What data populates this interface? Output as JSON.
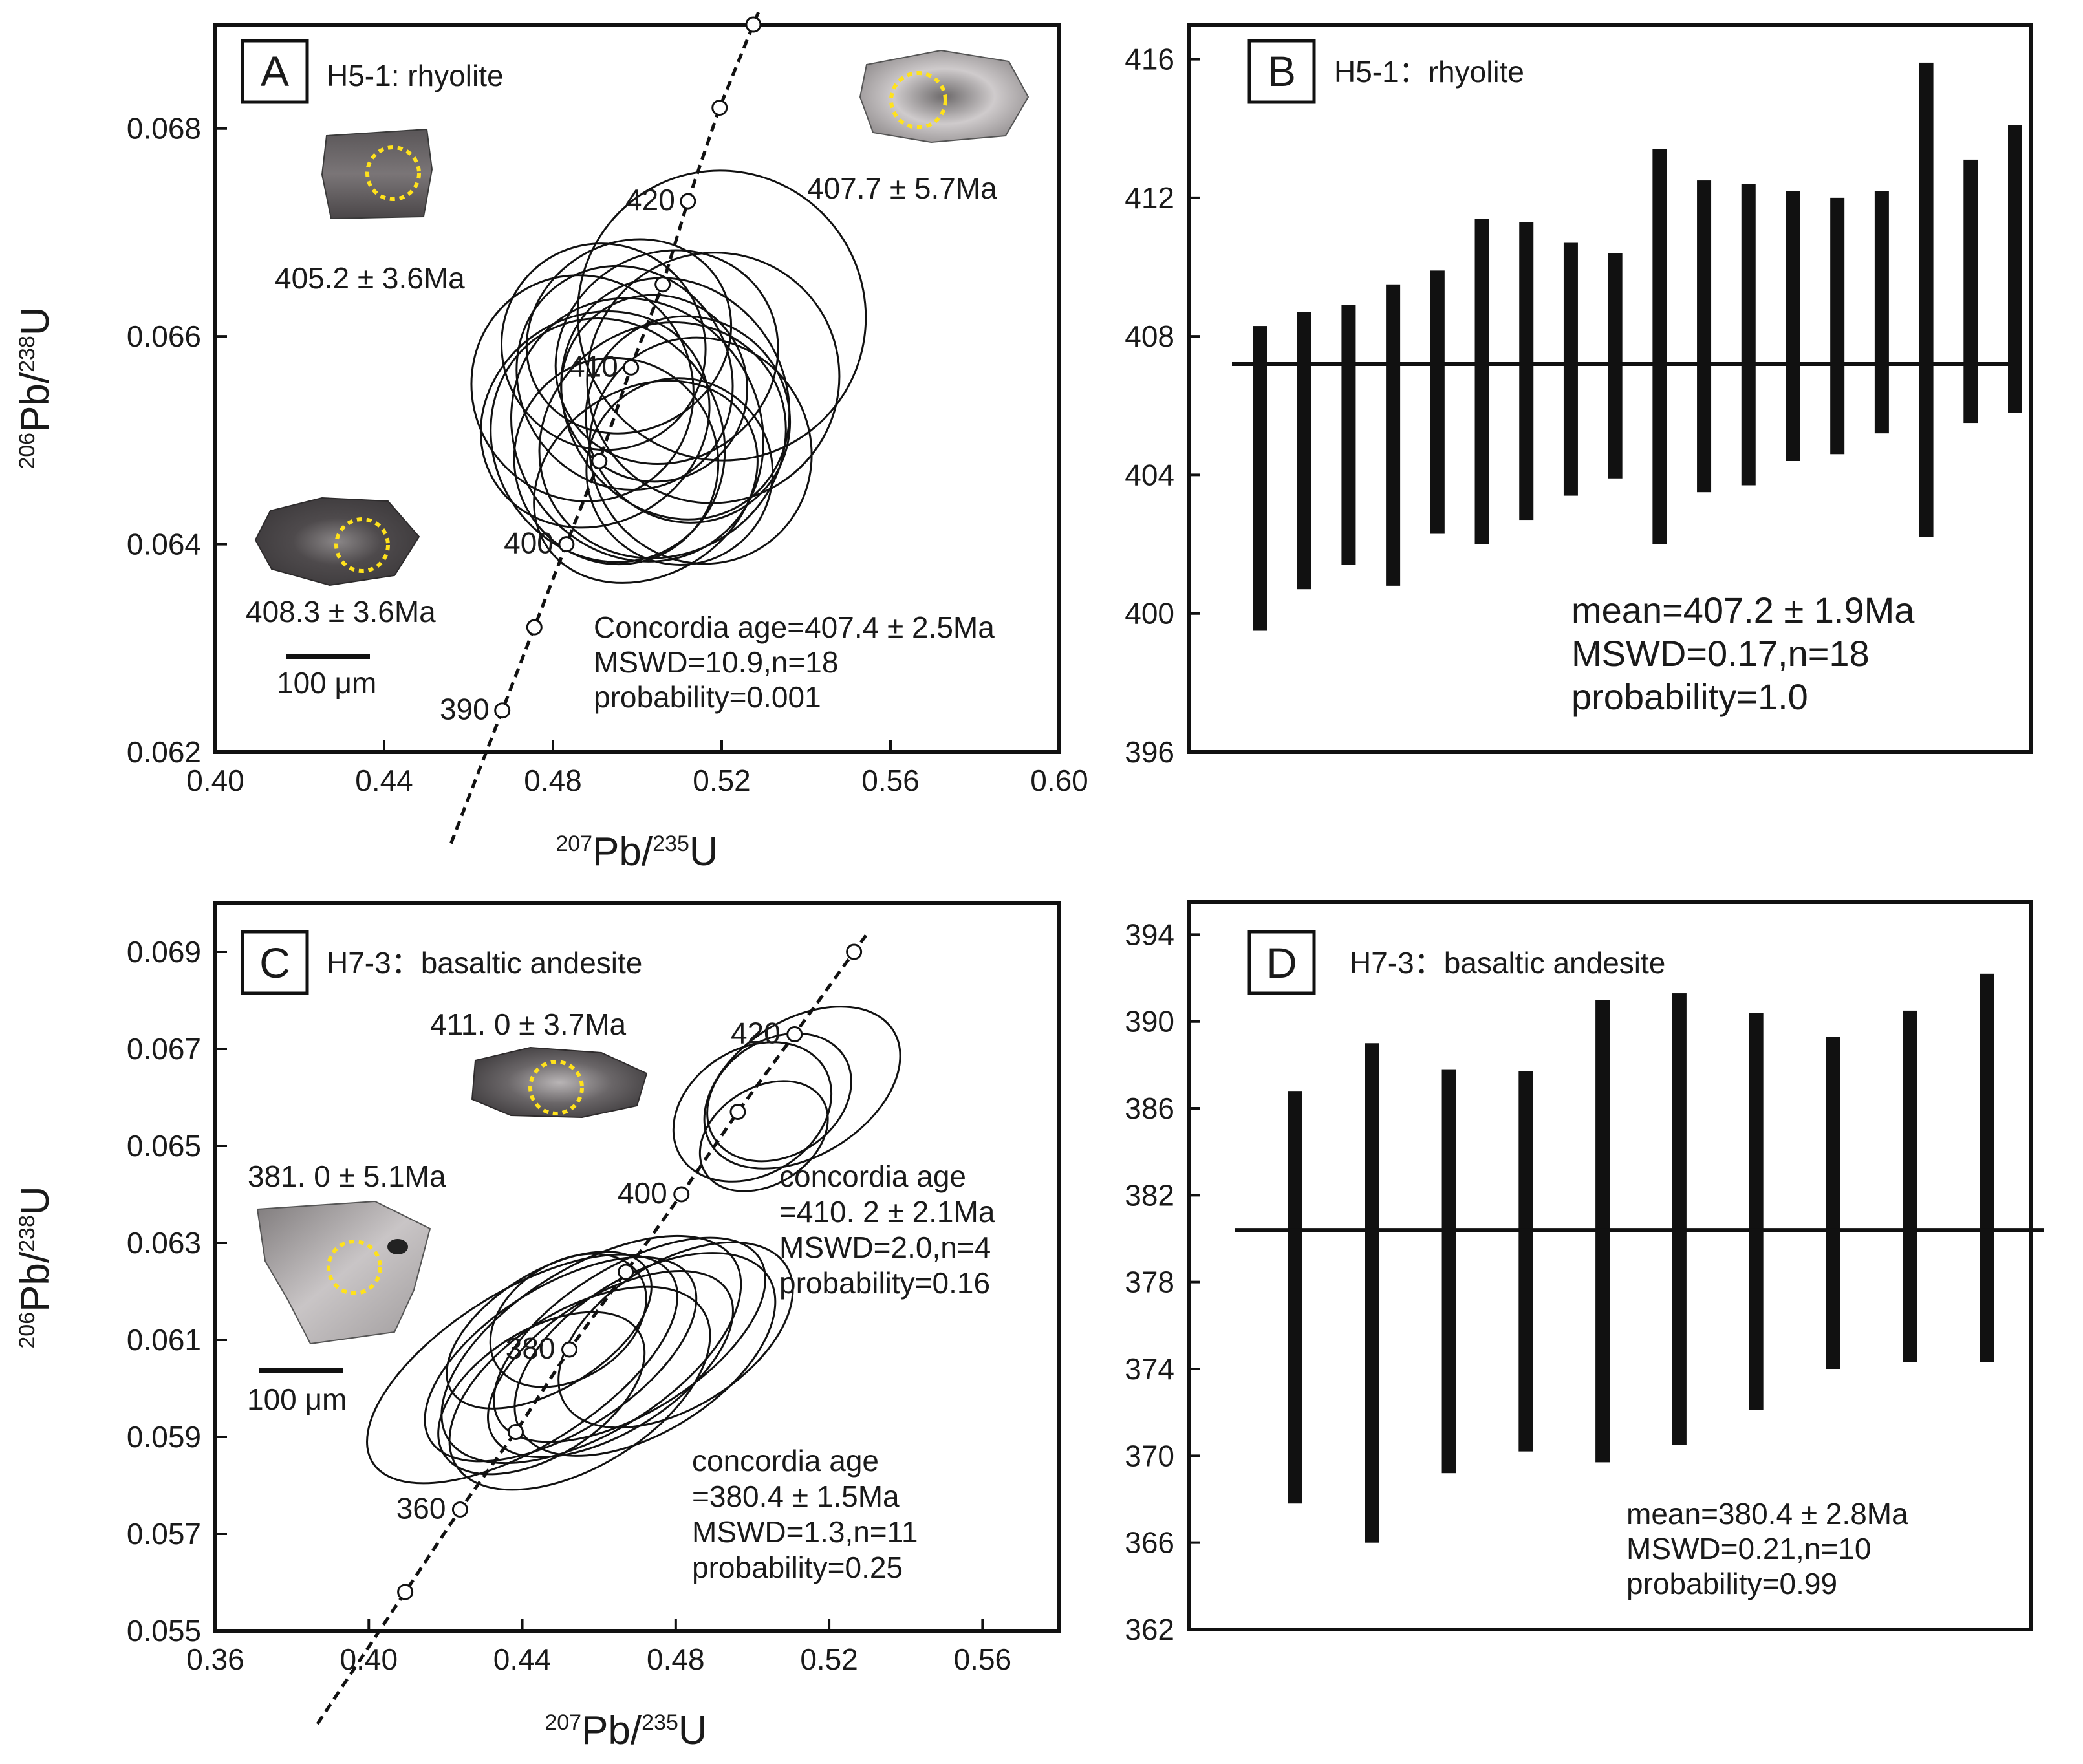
{
  "chart_data": [
    {
      "panel": "A",
      "type": "scatter",
      "subtype": "concordia-diagram",
      "title": "H5-1: rhyolite",
      "xlabel_parts": [
        "207",
        "Pb/",
        "235",
        "U"
      ],
      "ylabel_parts": [
        "206",
        "Pb/",
        "238",
        "U"
      ],
      "xlim": [
        0.4,
        0.6
      ],
      "ylim": [
        0.062,
        0.069
      ],
      "xticks": [
        "0.40",
        "0.44",
        "0.48",
        "0.52",
        "0.56",
        "0.60"
      ],
      "yticks": [
        "0.062",
        "0.064",
        "0.066",
        "0.068"
      ],
      "concordia_points": [
        {
          "x": 0.468,
          "y": 0.0624,
          "age": "390"
        },
        {
          "x": 0.4756,
          "y": 0.0632
        },
        {
          "x": 0.4832,
          "y": 0.064,
          "age": "400"
        },
        {
          "x": 0.491,
          "y": 0.0648
        },
        {
          "x": 0.4985,
          "y": 0.0657,
          "age": "410"
        },
        {
          "x": 0.506,
          "y": 0.0665
        },
        {
          "x": 0.512,
          "y": 0.0673,
          "age": "420"
        },
        {
          "x": 0.5195,
          "y": 0.0682
        },
        {
          "x": 0.5275,
          "y": 0.069
        }
      ],
      "ellipses": [
        {
          "x": 0.49,
          "y": 0.0652,
          "rx": 0.028,
          "ry": 0.001
        },
        {
          "x": 0.493,
          "y": 0.065,
          "rx": 0.027,
          "ry": 0.0012
        },
        {
          "x": 0.497,
          "y": 0.0656,
          "rx": 0.025,
          "ry": 0.0011
        },
        {
          "x": 0.5,
          "y": 0.0651,
          "rx": 0.029,
          "ry": 0.0013
        },
        {
          "x": 0.504,
          "y": 0.0655,
          "rx": 0.022,
          "ry": 0.0009
        },
        {
          "x": 0.506,
          "y": 0.065,
          "rx": 0.03,
          "ry": 0.0011
        },
        {
          "x": 0.509,
          "y": 0.0654,
          "rx": 0.026,
          "ry": 0.0012
        },
        {
          "x": 0.495,
          "y": 0.0648,
          "rx": 0.024,
          "ry": 0.001
        },
        {
          "x": 0.502,
          "y": 0.0646,
          "rx": 0.028,
          "ry": 0.0009
        },
        {
          "x": 0.512,
          "y": 0.0652,
          "rx": 0.024,
          "ry": 0.001
        },
        {
          "x": 0.515,
          "y": 0.0649,
          "rx": 0.026,
          "ry": 0.0011
        },
        {
          "x": 0.498,
          "y": 0.066,
          "rx": 0.025,
          "ry": 0.0009
        },
        {
          "x": 0.507,
          "y": 0.0658,
          "rx": 0.027,
          "ry": 0.001
        },
        {
          "x": 0.518,
          "y": 0.0656,
          "rx": 0.03,
          "ry": 0.0012
        },
        {
          "x": 0.52,
          "y": 0.0662,
          "rx": 0.034,
          "ry": 0.0014
        },
        {
          "x": 0.487,
          "y": 0.0655,
          "rx": 0.026,
          "ry": 0.0011
        },
        {
          "x": 0.492,
          "y": 0.0659,
          "rx": 0.024,
          "ry": 0.001
        },
        {
          "x": 0.51,
          "y": 0.0647,
          "rx": 0.022,
          "ry": 0.0009
        }
      ],
      "grain_ages": [
        "405.2 ± 3.6Ma",
        "407.7 ± 5.7Ma",
        "408.3 ± 3.6Ma"
      ],
      "scale_bar": "100 μm",
      "annotation": [
        "Concordia age=407.4  ± 2.5Ma",
        "MSWD=10.9,n=18",
        "probability=0.001"
      ]
    },
    {
      "panel": "B",
      "type": "bar",
      "subtype": "weighted-mean-age",
      "title": "H5-1：rhyolite",
      "ylim": [
        396,
        417
      ],
      "yticks": [
        "396",
        "400",
        "404",
        "408",
        "412",
        "416"
      ],
      "mean": 407.2,
      "bars": [
        [
          399.5,
          408.3
        ],
        [
          400.7,
          408.7
        ],
        [
          401.4,
          408.9
        ],
        [
          400.8,
          409.5
        ],
        [
          402.3,
          409.9
        ],
        [
          402.0,
          411.4
        ],
        [
          402.7,
          411.3
        ],
        [
          403.4,
          410.7
        ],
        [
          403.9,
          410.4
        ],
        [
          402.0,
          413.4
        ],
        [
          403.5,
          412.5
        ],
        [
          403.7,
          412.4
        ],
        [
          404.4,
          412.2
        ],
        [
          404.6,
          412.0
        ],
        [
          405.2,
          412.2
        ],
        [
          402.2,
          415.9
        ],
        [
          405.5,
          413.1
        ],
        [
          405.8,
          414.1
        ]
      ],
      "annotation": [
        "mean=407.2  ± 1.9Ma",
        "MSWD=0.17,n=18",
        "probability=1.0"
      ]
    },
    {
      "panel": "C",
      "type": "scatter",
      "subtype": "concordia-diagram",
      "title": "H7-3：basaltic andesite",
      "xlabel_parts": [
        "207",
        "Pb/",
        "235",
        "U"
      ],
      "ylabel_parts": [
        "206",
        "Pb/",
        "238",
        "U"
      ],
      "xlim": [
        0.36,
        0.58
      ],
      "ylim": [
        0.055,
        0.07
      ],
      "xticks": [
        "0.36",
        "0.40",
        "0.44",
        "0.48",
        "0.52",
        "0.56"
      ],
      "yticks": [
        "0.055",
        "0.057",
        "0.059",
        "0.061",
        "0.063",
        "0.065",
        "0.067",
        "0.069"
      ],
      "concordia_points": [
        {
          "x": 0.4095,
          "y": 0.0558
        },
        {
          "x": 0.4238,
          "y": 0.0575,
          "age": "360"
        },
        {
          "x": 0.4383,
          "y": 0.0591
        },
        {
          "x": 0.4523,
          "y": 0.0608,
          "age": "380"
        },
        {
          "x": 0.467,
          "y": 0.0624
        },
        {
          "x": 0.4815,
          "y": 0.064,
          "age": "400"
        },
        {
          "x": 0.4962,
          "y": 0.0657
        },
        {
          "x": 0.511,
          "y": 0.0673,
          "age": "420"
        },
        {
          "x": 0.5265,
          "y": 0.069
        }
      ],
      "ellipses": [
        {
          "x": 0.5,
          "y": 0.0657,
          "rx": 0.022,
          "ry": 0.0013
        },
        {
          "x": 0.507,
          "y": 0.066,
          "rx": 0.02,
          "ry": 0.0012
        },
        {
          "x": 0.513,
          "y": 0.0662,
          "rx": 0.028,
          "ry": 0.0014
        },
        {
          "x": 0.503,
          "y": 0.0652,
          "rx": 0.018,
          "ry": 0.001
        },
        {
          "x": 0.44,
          "y": 0.0604,
          "rx": 0.046,
          "ry": 0.0016
        },
        {
          "x": 0.45,
          "y": 0.0606,
          "rx": 0.04,
          "ry": 0.0015
        },
        {
          "x": 0.458,
          "y": 0.0608,
          "rx": 0.044,
          "ry": 0.0017
        },
        {
          "x": 0.463,
          "y": 0.0605,
          "rx": 0.036,
          "ry": 0.0014
        },
        {
          "x": 0.468,
          "y": 0.061,
          "rx": 0.04,
          "ry": 0.0015
        },
        {
          "x": 0.455,
          "y": 0.06,
          "rx": 0.038,
          "ry": 0.0016
        },
        {
          "x": 0.472,
          "y": 0.0607,
          "rx": 0.038,
          "ry": 0.0016
        },
        {
          "x": 0.447,
          "y": 0.0612,
          "rx": 0.03,
          "ry": 0.0012
        },
        {
          "x": 0.48,
          "y": 0.0611,
          "rx": 0.034,
          "ry": 0.0015
        },
        {
          "x": 0.452,
          "y": 0.0614,
          "rx": 0.022,
          "ry": 0.0012
        },
        {
          "x": 0.445,
          "y": 0.0599,
          "rx": 0.03,
          "ry": 0.0013
        }
      ],
      "grain_ages": [
        "411. 0 ± 3.7Ma",
        "381. 0 ± 5.1Ma"
      ],
      "scale_bar": "100 μm",
      "annotation_upper": [
        "concordia age",
        "=410. 2 ± 2.1Ma",
        "MSWD=2.0,n=4",
        "probability=0.16"
      ],
      "annotation_lower": [
        "concordia age",
        "=380.4  ± 1.5Ma",
        "MSWD=1.3,n=11",
        "probability=0.25"
      ]
    },
    {
      "panel": "D",
      "type": "bar",
      "subtype": "weighted-mean-age",
      "title": "H7-3：basaltic andesite",
      "ylim": [
        362,
        395.5
      ],
      "yticks": [
        "362",
        "366",
        "370",
        "374",
        "378",
        "382",
        "386",
        "390",
        "394"
      ],
      "mean": 380.4,
      "bars": [
        [
          367.8,
          386.8
        ],
        [
          366.0,
          389.0
        ],
        [
          369.2,
          387.8
        ],
        [
          370.2,
          387.7
        ],
        [
          369.7,
          391.0
        ],
        [
          370.5,
          391.3
        ],
        [
          372.1,
          390.4
        ],
        [
          374.0,
          389.3
        ],
        [
          374.3,
          390.5
        ],
        [
          374.3,
          392.2
        ]
      ],
      "annotation": [
        "mean=380.4  ± 2.8Ma",
        "MSWD=0.21,n=10",
        "probability=0.99"
      ]
    }
  ]
}
